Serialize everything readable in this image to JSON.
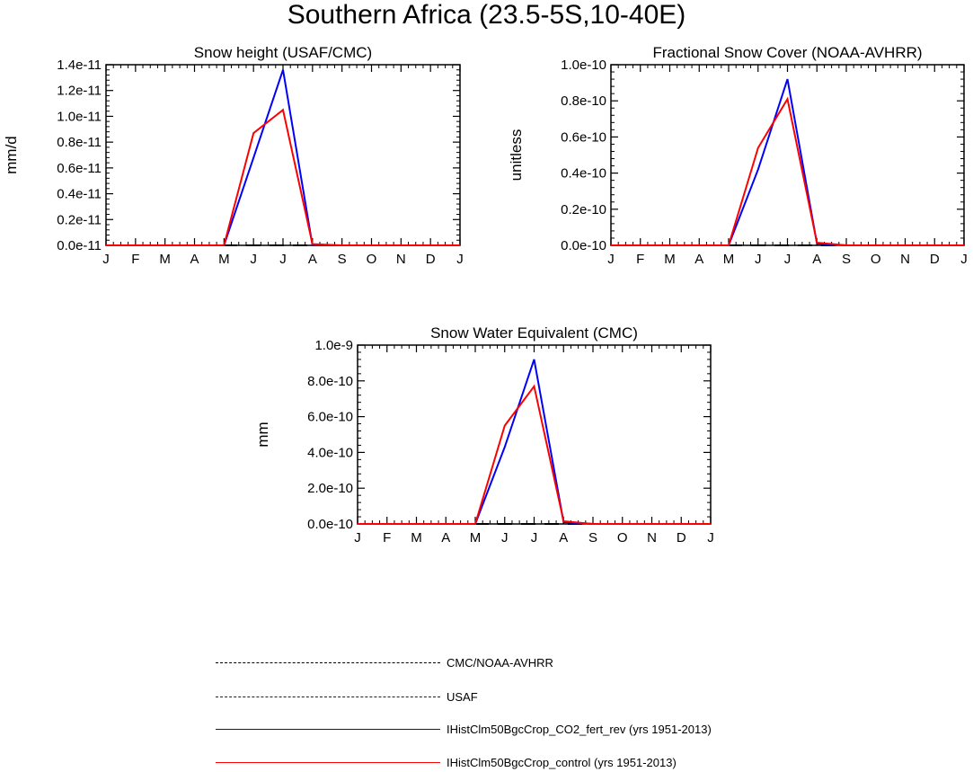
{
  "figure": {
    "title": "Southern Africa (23.5-5S,10-40E)"
  },
  "series_styles": [
    {
      "name": "CMC/NOAA-AVHRR",
      "color": "#000000",
      "dash": "dashed"
    },
    {
      "name": "USAF",
      "color": "#0000ff",
      "dash": "dashed"
    },
    {
      "name": "IHistClm50BgcCrop_CO2_fert_rev (yrs 1951-2013)",
      "color": "#0000ff",
      "dash": "solid"
    },
    {
      "name": "IHistClm50BgcCrop_control (yrs 1951-2013)",
      "color": "#ff0000",
      "dash": "solid"
    }
  ],
  "legend": {
    "items": [
      {
        "label": "CMC/NOAA-AVHRR",
        "color": "#000000",
        "dash": "dashed"
      },
      {
        "label": "USAF",
        "color": "#0000ff",
        "dash": "dashed"
      },
      {
        "label": "IHistClm50BgcCrop_CO2_fert_rev (yrs 1951-2013)",
        "color": "#0000ff",
        "dash": "solid"
      },
      {
        "label": "IHistClm50BgcCrop_control (yrs 1951-2013)",
        "color": "#ff0000",
        "dash": "solid"
      }
    ]
  },
  "chart_data": [
    {
      "type": "line",
      "title": "Snow height (USAF/CMC)",
      "xlabel": "",
      "ylabel": "mm/d",
      "categories": [
        "J",
        "F",
        "M",
        "A",
        "M",
        "J",
        "J",
        "A",
        "S",
        "O",
        "N",
        "D",
        "J"
      ],
      "ylim": [
        0,
        1.4e-11
      ],
      "yticks": [
        0,
        2e-12,
        4e-12,
        6e-12,
        8e-12,
        1e-11,
        1.2e-11,
        1.4e-11
      ],
      "ytick_labels": [
        "0.0e-11",
        "0.2e-11",
        "0.4e-11",
        "0.6e-11",
        "0.8e-11",
        "1.0e-11",
        "1.2e-11",
        "1.4e-11"
      ],
      "grid": false,
      "series": [
        {
          "name": "CMC/NOAA-AVHRR",
          "values": [
            0,
            0,
            0,
            0,
            0,
            0,
            0,
            0,
            0,
            0,
            0,
            0,
            0
          ]
        },
        {
          "name": "IHistClm50BgcCrop_CO2_fert_rev (yrs 1951-2013)",
          "values": [
            0,
            0,
            0,
            0,
            0,
            6.8e-12,
            1.36e-11,
            0,
            0,
            0,
            0,
            0,
            0
          ]
        },
        {
          "name": "IHistClm50BgcCrop_control (yrs 1951-2013)",
          "values": [
            0,
            0,
            0,
            0,
            0,
            8.7e-12,
            1.05e-11,
            1e-13,
            0,
            0,
            0,
            0,
            0
          ]
        }
      ]
    },
    {
      "type": "line",
      "title": "Fractional Snow Cover (NOAA-AVHRR)",
      "xlabel": "",
      "ylabel": "unitless",
      "categories": [
        "J",
        "F",
        "M",
        "A",
        "M",
        "J",
        "J",
        "A",
        "S",
        "O",
        "N",
        "D",
        "J"
      ],
      "ylim": [
        0,
        1e-10
      ],
      "yticks": [
        0,
        2e-11,
        4e-11,
        6e-11,
        8e-11,
        1e-10
      ],
      "ytick_labels": [
        "0.0e-10",
        "0.2e-10",
        "0.4e-10",
        "0.6e-10",
        "0.8e-10",
        "1.0e-10"
      ],
      "grid": false,
      "series": [
        {
          "name": "CMC/NOAA-AVHRR",
          "values": [
            0,
            0,
            0,
            0,
            0,
            0,
            0,
            0,
            0,
            0,
            0,
            0,
            0
          ]
        },
        {
          "name": "IHistClm50BgcCrop_CO2_fert_rev (yrs 1951-2013)",
          "values": [
            0,
            0,
            0,
            0,
            0,
            4.2e-11,
            9.2e-11,
            1e-12,
            0,
            0,
            0,
            0,
            0
          ]
        },
        {
          "name": "IHistClm50BgcCrop_control (yrs 1951-2013)",
          "values": [
            0,
            0,
            0,
            0,
            0,
            5.4e-11,
            8.1e-11,
            1.5e-12,
            0,
            0,
            0,
            0,
            0
          ]
        }
      ]
    },
    {
      "type": "line",
      "title": "Snow Water Equivalent (CMC)",
      "xlabel": "",
      "ylabel": "mm",
      "categories": [
        "J",
        "F",
        "M",
        "A",
        "M",
        "J",
        "J",
        "A",
        "S",
        "O",
        "N",
        "D",
        "J"
      ],
      "ylim": [
        0,
        1e-09
      ],
      "yticks": [
        0,
        2e-10,
        4e-10,
        6e-10,
        8e-10,
        1e-09
      ],
      "ytick_labels": [
        "0.0e-10",
        "2.0e-10",
        "4.0e-10",
        "6.0e-10",
        "8.0e-10",
        "1.0e-9"
      ],
      "grid": false,
      "series": [
        {
          "name": "CMC/NOAA-AVHRR",
          "values": [
            0,
            0,
            0,
            0,
            0,
            0,
            0,
            0,
            0,
            0,
            0,
            0,
            0
          ]
        },
        {
          "name": "IHistClm50BgcCrop_CO2_fert_rev (yrs 1951-2013)",
          "values": [
            0,
            0,
            0,
            0,
            0,
            4.3e-10,
            9.2e-10,
            1e-11,
            0,
            0,
            0,
            0,
            0
          ]
        },
        {
          "name": "IHistClm50BgcCrop_control (yrs 1951-2013)",
          "values": [
            0,
            0,
            0,
            0,
            0,
            5.5e-10,
            7.7e-10,
            1.5e-11,
            0,
            0,
            0,
            0,
            0
          ]
        }
      ]
    }
  ]
}
